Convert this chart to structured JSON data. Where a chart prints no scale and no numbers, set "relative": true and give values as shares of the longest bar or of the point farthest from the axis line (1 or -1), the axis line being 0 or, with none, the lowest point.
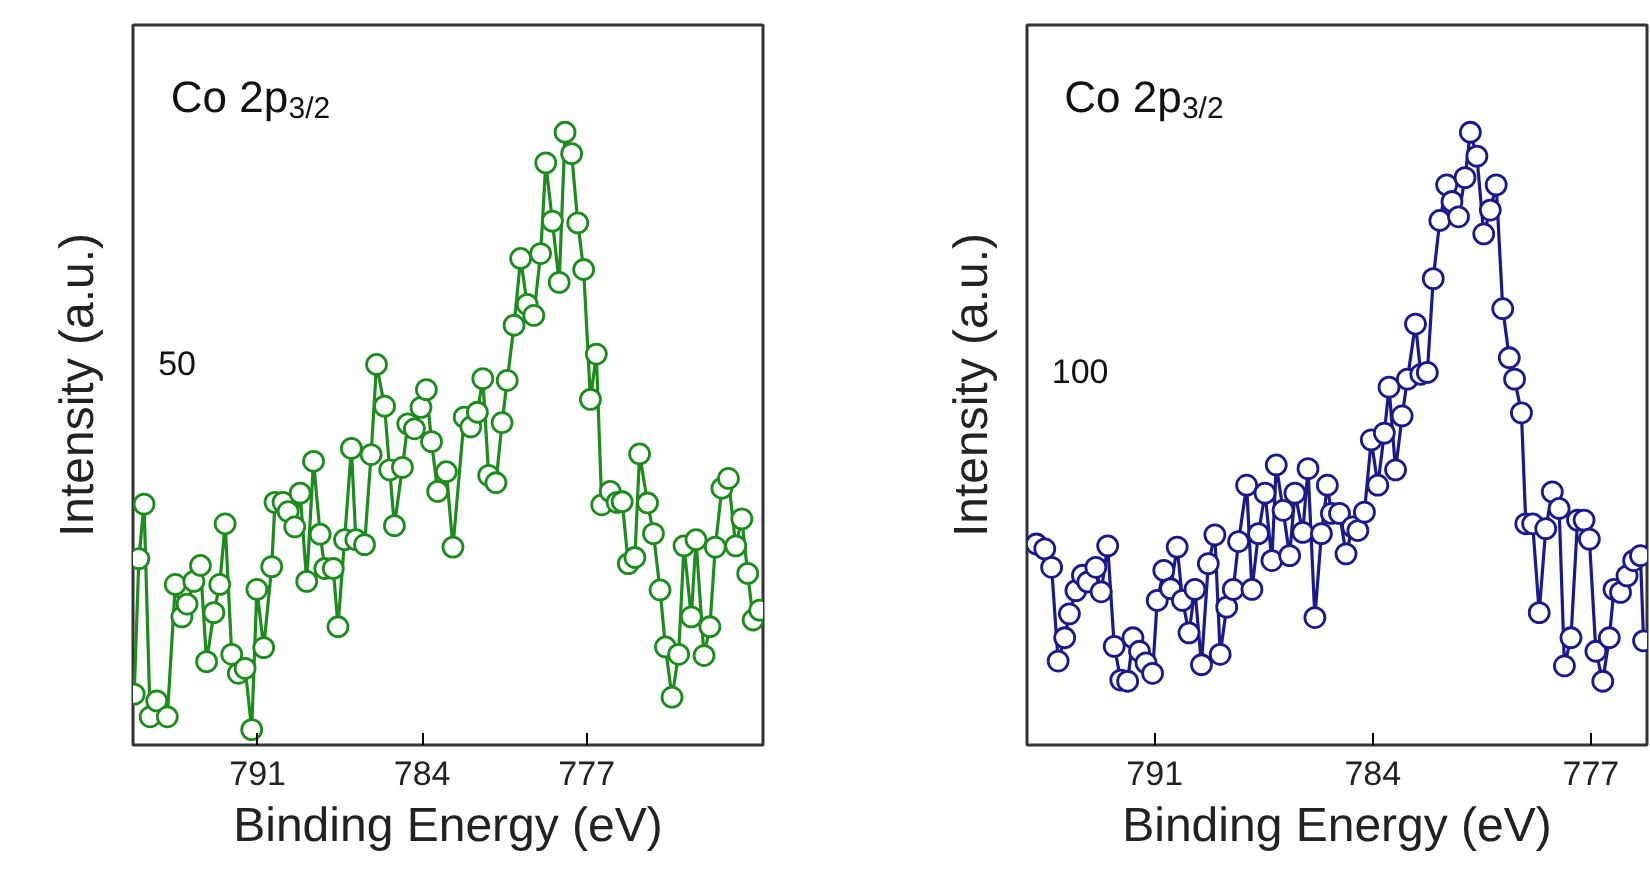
{
  "chart_data": [
    {
      "type": "line",
      "relative": true,
      "marker": "circle",
      "line_style": "solid",
      "tick_labels": "x",
      "xlabel": "Binding Energy (eV)",
      "ylabel": "Intensity (a.u.)",
      "annotations": [
        "Co 2p$_{3/2}$",
        "50"
      ],
      "xlim": [
        796.3,
        769.5
      ],
      "xticks": [
        791,
        784,
        777
      ],
      "series": [
        {
          "color": "#1c8c1c",
          "x": [
            796.25,
            796.05,
            795.83,
            795.57,
            795.29,
            794.84,
            794.5,
            794.22,
            794.0,
            793.71,
            793.43,
            793.17,
            792.86,
            792.61,
            792.38,
            792.1,
            791.82,
            791.53,
            791.25,
            791.03,
            790.74,
            790.4,
            790.26,
            789.92,
            789.7,
            789.42,
            789.19,
            788.91,
            788.62,
            788.34,
            788.14,
            787.78,
            787.58,
            787.3,
            787.01,
            786.82,
            786.45,
            786.17,
            785.94,
            785.6,
            785.38,
            785.18,
            784.84,
            784.61,
            784.33,
            784.05,
            783.82,
            783.6,
            783.34,
            782.97,
            782.69,
            782.21,
            781.93,
            781.65,
            781.42,
            781.17,
            780.86,
            780.6,
            780.38,
            780.09,
            779.81,
            779.53,
            779.25,
            778.96,
            778.74,
            778.46,
            778.17,
            777.92,
            777.64,
            777.38,
            777.13,
            776.84,
            776.59,
            776.36,
            776.0,
            775.71,
            775.49,
            775.23,
            774.95,
            774.75,
            774.41,
            774.16,
            773.88,
            773.65,
            773.37,
            773.09,
            772.86,
            772.55,
            772.35,
            772.01,
            771.76,
            771.53,
            771.25,
            770.97,
            770.66,
            770.4,
            770.15,
            769.92,
            769.64
          ],
          "values": [
            0.083,
            0.304,
            0.393,
            0.046,
            0.072,
            0.046,
            0.262,
            0.209,
            0.23,
            0.267,
            0.293,
            0.136,
            0.216,
            0.262,
            0.361,
            0.148,
            0.117,
            0.125,
            0.025,
            0.254,
            0.159,
            0.291,
            0.396,
            0.396,
            0.381,
            0.356,
            0.411,
            0.267,
            0.463,
            0.344,
            0.288,
            0.288,
            0.193,
            0.335,
            0.484,
            0.335,
            0.327,
            0.474,
            0.621,
            0.553,
            0.449,
            0.358,
            0.453,
            0.524,
            0.516,
            0.551,
            0.58,
            0.495,
            0.414,
            0.446,
            0.323,
            0.535,
            0.519,
            0.543,
            0.598,
            0.44,
            0.428,
            0.526,
            0.595,
            0.685,
            0.794,
            0.719,
            0.701,
            0.802,
            0.95,
            0.855,
            0.755,
            1.0,
            0.965,
            0.852,
            0.776,
            0.564,
            0.638,
            0.392,
            0.414,
            0.396,
            0.397,
            0.296,
            0.306,
            0.475,
            0.395,
            0.345,
            0.253,
            0.16,
            0.078,
            0.148,
            0.325,
            0.209,
            0.335,
            0.146,
            0.193,
            0.323,
            0.419,
            0.435,
            0.325,
            0.369,
            0.28,
            0.204,
            0.22
          ]
        }
      ]
    },
    {
      "type": "line",
      "relative": true,
      "marker": "circle",
      "line_style": "solid",
      "tick_labels": "x",
      "xlabel": "Binding Energy (eV)",
      "ylabel": "Intensity (a.u.)",
      "annotations": [
        "Co 2p$_{3/2}$",
        "100"
      ],
      "xlim": [
        795.1,
        775.2
      ],
      "xticks": [
        791,
        784,
        777
      ],
      "series": [
        {
          "color": "#1a1a8c",
          "x": [
            794.8,
            794.53,
            794.31,
            794.1,
            793.89,
            793.74,
            793.53,
            793.32,
            793.15,
            792.89,
            792.72,
            792.51,
            792.3,
            792.09,
            791.87,
            791.7,
            791.49,
            791.28,
            791.07,
            790.92,
            790.71,
            790.49,
            790.28,
            790.11,
            789.9,
            789.71,
            789.5,
            789.28,
            789.07,
            788.9,
            788.69,
            788.48,
            788.31,
            788.05,
            787.88,
            787.67,
            787.46,
            787.24,
            787.1,
            786.88,
            786.67,
            786.5,
            786.25,
            786.08,
            785.86,
            785.65,
            785.46,
            785.33,
            785.07,
            784.86,
            784.65,
            784.48,
            784.27,
            784.05,
            783.84,
            783.63,
            783.48,
            783.27,
            783.06,
            782.89,
            782.63,
            782.46,
            782.25,
            782.06,
            781.85,
            781.63,
            781.46,
            781.25,
            781.04,
            780.87,
            780.66,
            780.44,
            780.23,
            780.04,
            779.83,
            779.62,
            779.45,
            779.23,
            779.09,
            778.87,
            778.66,
            778.45,
            778.24,
            778.02,
            777.85,
            777.64,
            777.43,
            777.22,
            777.05,
            776.84,
            776.62,
            776.41,
            776.26,
            776.05,
            775.84,
            775.63,
            775.41,
            775.31
          ],
          "values": [
            0.328,
            0.32,
            0.29,
            0.137,
            0.175,
            0.214,
            0.252,
            0.277,
            0.266,
            0.29,
            0.25,
            0.325,
            0.161,
            0.106,
            0.104,
            0.175,
            0.153,
            0.134,
            0.117,
            0.236,
            0.285,
            0.255,
            0.323,
            0.236,
            0.183,
            0.254,
            0.131,
            0.296,
            0.343,
            0.148,
            0.225,
            0.254,
            0.332,
            0.424,
            0.254,
            0.345,
            0.411,
            0.301,
            0.457,
            0.383,
            0.309,
            0.411,
            0.347,
            0.451,
            0.208,
            0.345,
            0.424,
            0.378,
            0.378,
            0.312,
            0.356,
            0.35,
            0.38,
            0.498,
            0.424,
            0.509,
            0.584,
            0.449,
            0.537,
            0.597,
            0.687,
            0.605,
            0.608,
            0.761,
            0.856,
            0.914,
            0.887,
            0.862,
            0.926,
            1.0,
            0.961,
            0.834,
            0.873,
            0.914,
            0.712,
            0.632,
            0.597,
            0.542,
            0.361,
            0.361,
            0.216,
            0.353,
            0.413,
            0.386,
            0.129,
            0.175,
            0.367,
            0.367,
            0.336,
            0.153,
            0.104,
            0.175,
            0.254,
            0.249,
            0.276,
            0.301,
            0.309,
            0.17
          ]
        }
      ]
    }
  ]
}
